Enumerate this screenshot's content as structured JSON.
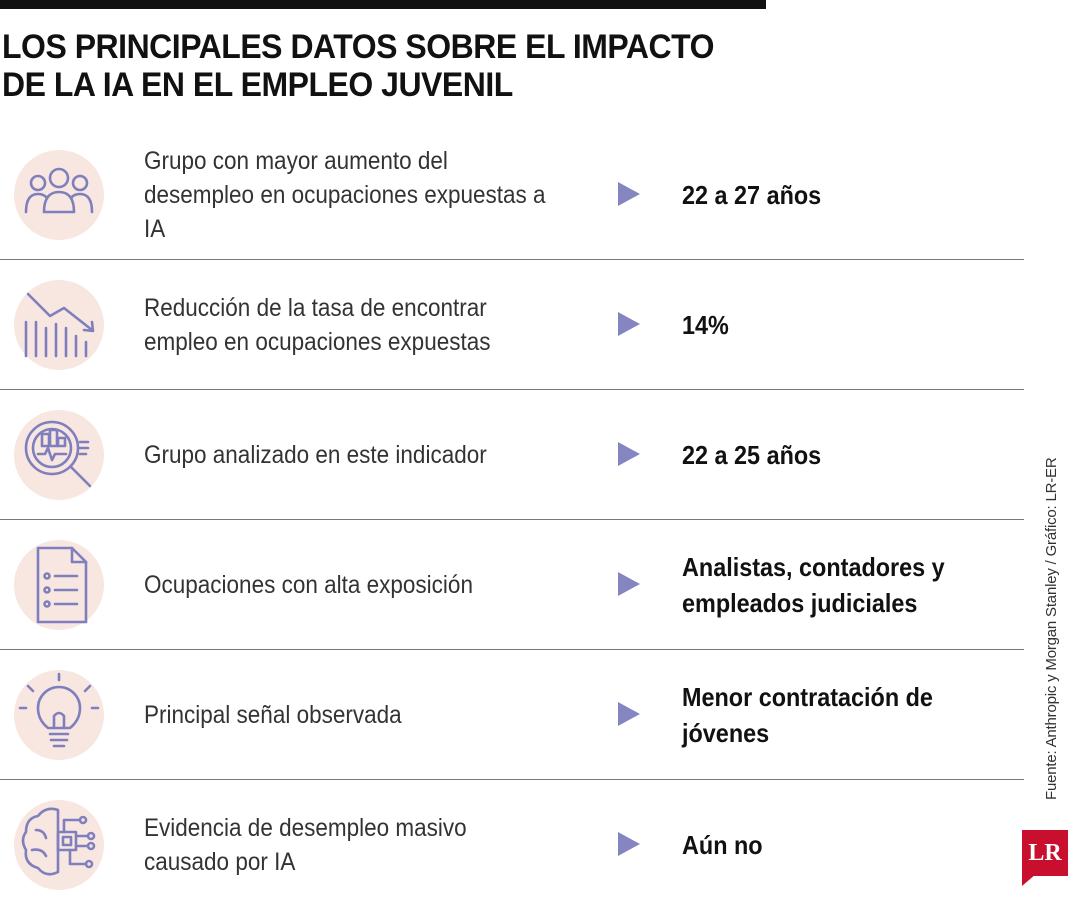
{
  "title": "LOS PRINCIPALES DATOS SOBRE EL IMPACTO DE LA IA EN EL EMPLEO JUVENIL",
  "rows": [
    {
      "icon": "people-group-icon",
      "description": "Grupo con mayor aumento del desempleo en ocupaciones expuestas a IA",
      "value": "22 a 27 años"
    },
    {
      "icon": "declining-chart-icon",
      "description": "Reducción de la tasa de encontrar empleo en ocupaciones expuestas",
      "value": "14%"
    },
    {
      "icon": "magnifier-analysis-icon",
      "description": "Grupo analizado en este indicador",
      "value": "22 a 25 años"
    },
    {
      "icon": "document-list-icon",
      "description": "Ocupaciones con alta exposición",
      "value": "Analistas, contadores y empleados judiciales"
    },
    {
      "icon": "lightbulb-icon",
      "description": "Principal señal observada",
      "value": "Menor contratación de jóvenes"
    },
    {
      "icon": "ai-brain-chip-icon",
      "description": "Evidencia de desempleo masivo causado por IA",
      "value": "Aún no"
    }
  ],
  "source": "Fuente: Anthropic y Morgan Stanley / Gráfico: LR-ER",
  "logo": "LR",
  "colors": {
    "accent": "#8585c2",
    "icon_bg": "#f8e6e0",
    "logo_red": "#c8102e",
    "rule": "#777777"
  }
}
